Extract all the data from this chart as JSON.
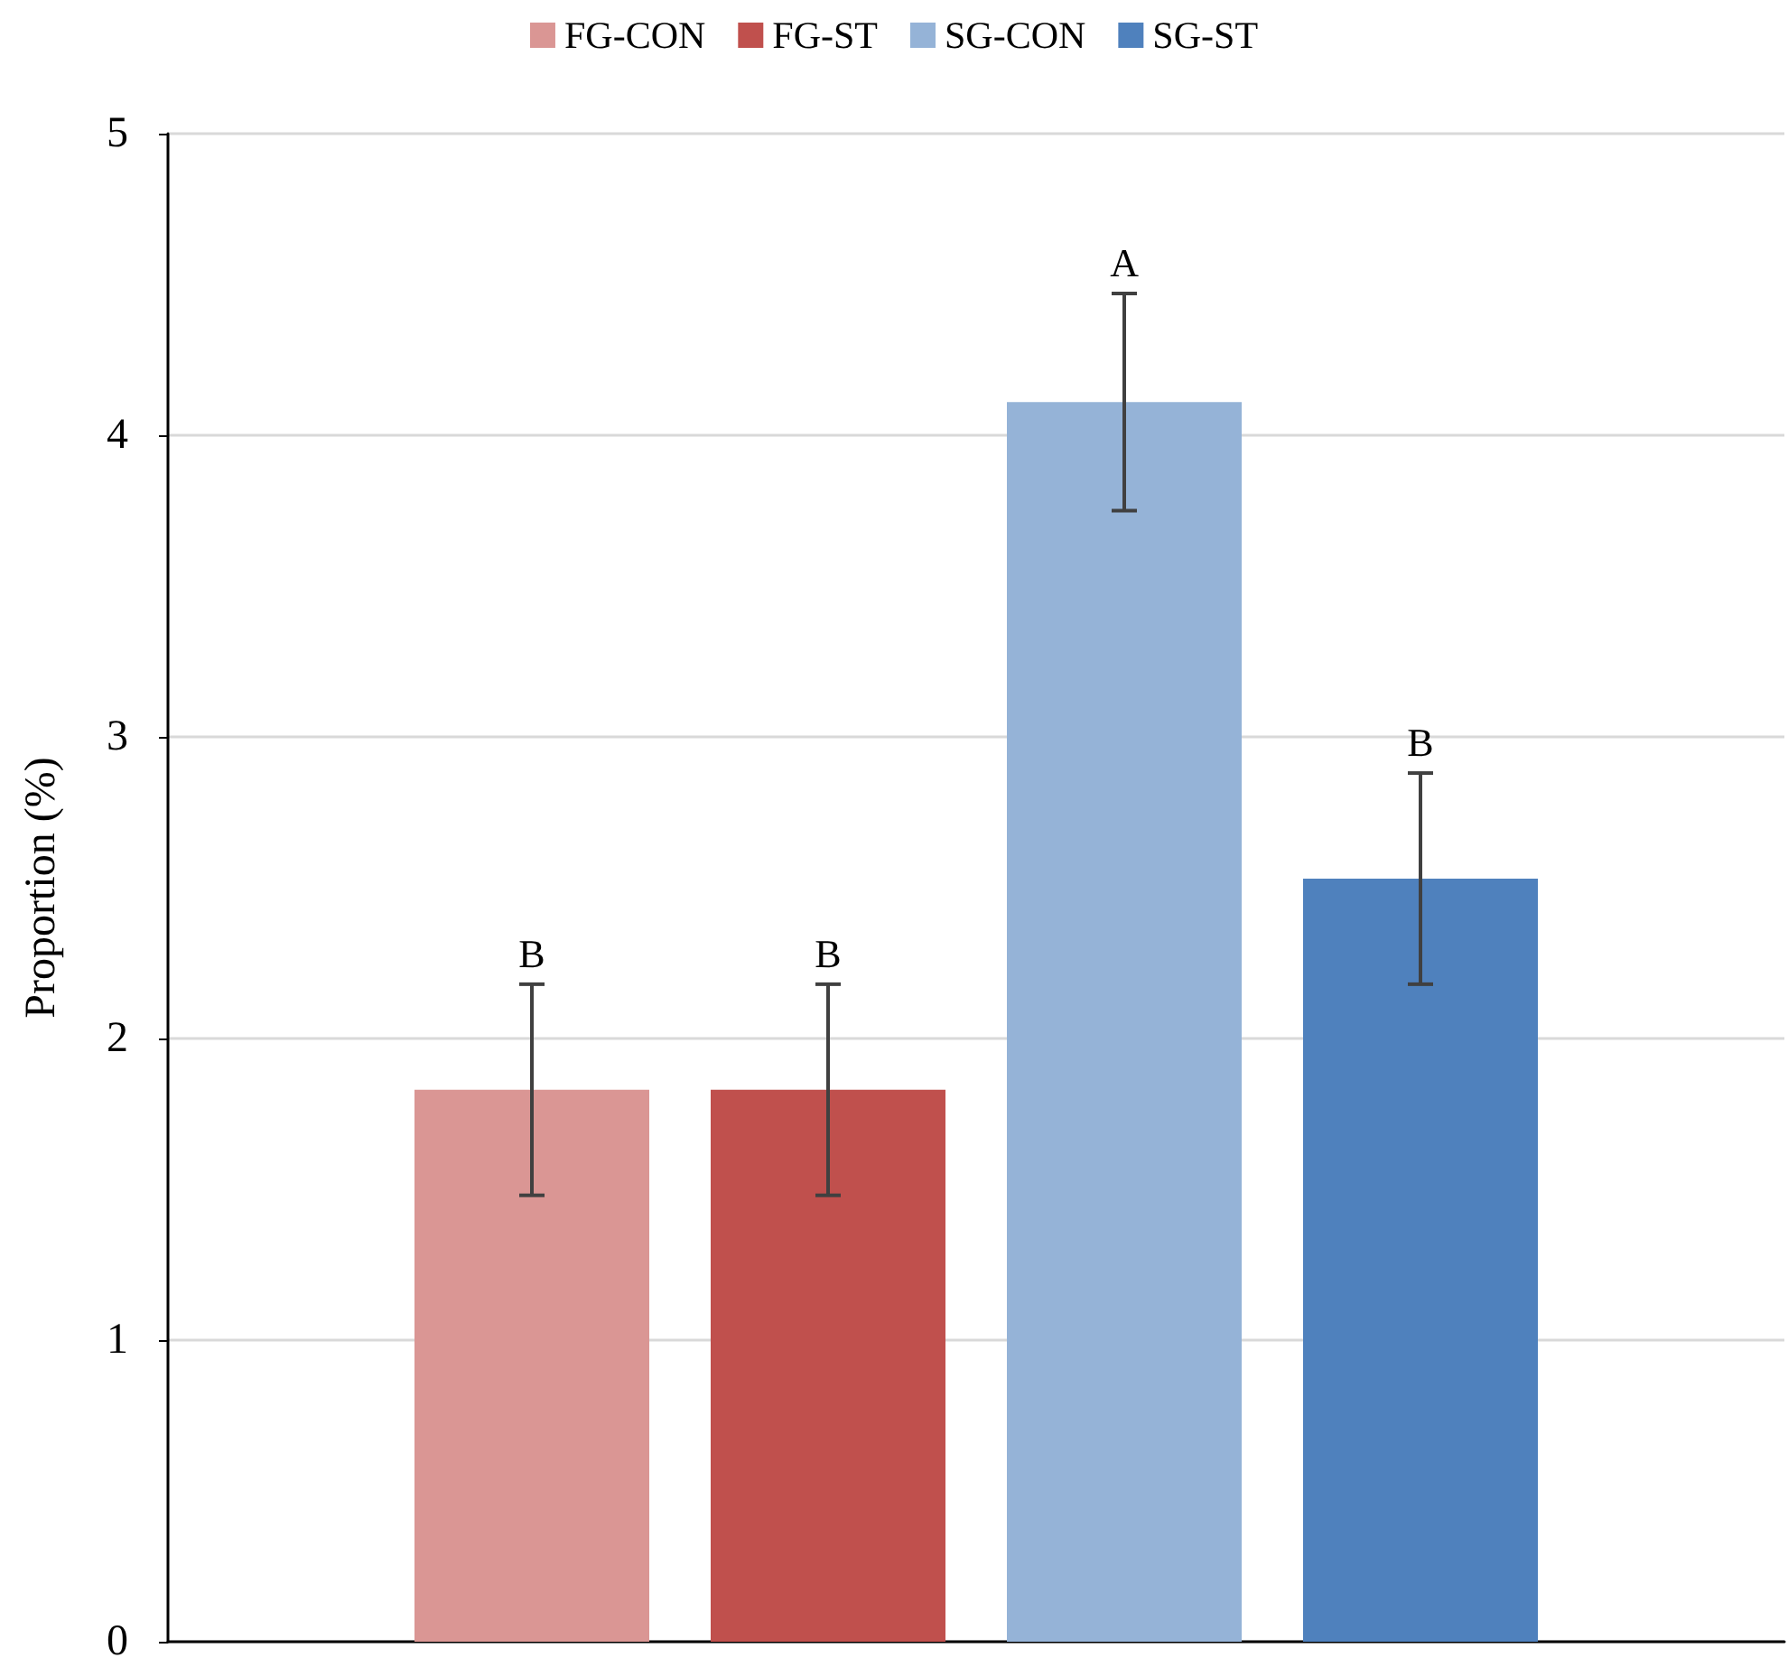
{
  "chart_data": {
    "type": "bar",
    "ylabel": "Proportion (%)",
    "categories": [
      null
    ],
    "series": [
      {
        "name": "FG-CON",
        "color": "#da9694",
        "values": [
          1.83
        ],
        "errors": [
          0.35
        ],
        "value_labels": [
          "B"
        ]
      },
      {
        "name": "FG-ST",
        "color": "#c0504d",
        "values": [
          1.83
        ],
        "errors": [
          0.35
        ],
        "value_labels": [
          "B"
        ]
      },
      {
        "name": "SG-CON",
        "color": "#95b3d7",
        "values": [
          4.11
        ],
        "errors": [
          0.36
        ],
        "value_labels": [
          "A"
        ]
      },
      {
        "name": "SG-ST",
        "color": "#4f81bd",
        "values": [
          2.53
        ],
        "errors": [
          0.35
        ],
        "value_labels": [
          "B"
        ]
      }
    ],
    "ylim": [
      0,
      5
    ],
    "yticks": [
      0,
      1,
      2,
      3,
      4,
      5
    ],
    "grid": "y",
    "legend": "top"
  }
}
